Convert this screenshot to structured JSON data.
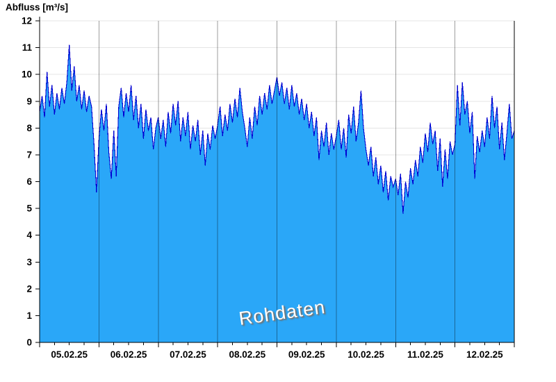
{
  "title": "Abfluss [m³/s]",
  "watermark": "Rohdaten",
  "chart_data": {
    "type": "area",
    "title": "Abfluss [m³/s]",
    "xlabel": "",
    "ylabel": "Abfluss [m³/s]",
    "ylim": [
      0,
      12
    ],
    "yticks": [
      0,
      1,
      2,
      3,
      4,
      5,
      6,
      7,
      8,
      9,
      10,
      11,
      12
    ],
    "x_tick_labels": [
      "05.02.25",
      "06.02.25",
      "07.02.25",
      "08.02.25",
      "09.02.25",
      "10.02.25",
      "11.02.25",
      "12.02.25"
    ],
    "x_range": "05.02.25 00:00 – 13.02.25 00:00",
    "sample_interval_hours": 1,
    "grid": {
      "horizontal": true,
      "vertical_day_lines": true
    },
    "legend_position": "none",
    "colors": {
      "area_fill": "#2aa7f8",
      "line": "#0000d2",
      "day_gridline": "rgba(0,0,0,0.38)",
      "h_gridline": "#e5e5e5",
      "axis": "#000000",
      "watermark_text": "#ffffff"
    },
    "series": [
      {
        "name": "Rohdaten",
        "unit": "m³/s",
        "values": [
          8.6,
          9.2,
          8.4,
          10.1,
          8.8,
          9.6,
          8.5,
          9.3,
          8.7,
          9.5,
          8.9,
          9.7,
          11.1,
          9.4,
          10.3,
          9.0,
          9.6,
          8.7,
          9.4,
          8.6,
          9.2,
          8.8,
          7.4,
          5.6,
          7.6,
          8.7,
          7.9,
          8.9,
          7.1,
          6.1,
          7.9,
          6.2,
          8.8,
          9.5,
          8.4,
          9.3,
          8.6,
          9.6,
          8.3,
          9.2,
          8.0,
          8.9,
          7.6,
          8.7,
          7.9,
          8.4,
          7.2,
          8.0,
          8.4,
          7.6,
          8.3,
          7.3,
          8.6,
          7.8,
          8.9,
          8.1,
          9.0,
          7.5,
          8.4,
          7.7,
          8.6,
          7.2,
          8.1,
          7.5,
          8.3,
          7.0,
          7.9,
          6.6,
          7.8,
          7.2,
          8.1,
          7.6,
          8.1,
          8.8,
          7.7,
          8.5,
          7.9,
          8.9,
          8.2,
          9.1,
          8.4,
          9.5,
          8.6,
          8.0,
          7.3,
          8.4,
          7.6,
          8.8,
          8.1,
          9.2,
          8.5,
          9.3,
          8.7,
          9.6,
          8.9,
          9.4,
          9.9,
          9.2,
          9.7,
          8.9,
          9.5,
          8.7,
          9.6,
          8.8,
          9.3,
          8.5,
          9.1,
          8.3,
          8.9,
          8.0,
          8.6,
          7.7,
          8.4,
          6.8,
          7.9,
          7.3,
          8.2,
          7.0,
          7.8,
          7.2,
          7.7,
          8.3,
          7.2,
          8.0,
          6.9,
          8.5,
          7.8,
          8.8,
          7.5,
          8.2,
          9.4,
          8.0,
          7.2,
          6.6,
          7.3,
          6.2,
          6.9,
          5.9,
          6.6,
          5.6,
          6.4,
          5.3,
          6.2,
          5.8,
          6.1,
          5.5,
          6.3,
          4.8,
          6.0,
          5.4,
          6.5,
          5.9,
          6.8,
          6.2,
          7.3,
          6.7,
          7.8,
          7.1,
          8.2,
          7.4,
          7.9,
          6.4,
          7.6,
          5.8,
          7.2,
          6.1,
          7.5,
          7.0,
          7.4,
          9.6,
          8.1,
          9.7,
          8.5,
          9.0,
          7.8,
          8.6,
          6.1,
          7.7,
          7.1,
          7.9,
          7.3,
          8.4,
          7.6,
          9.2,
          8.0,
          8.8,
          7.2,
          8.2,
          6.8,
          7.8,
          8.9,
          7.6,
          7.9
        ]
      }
    ]
  }
}
